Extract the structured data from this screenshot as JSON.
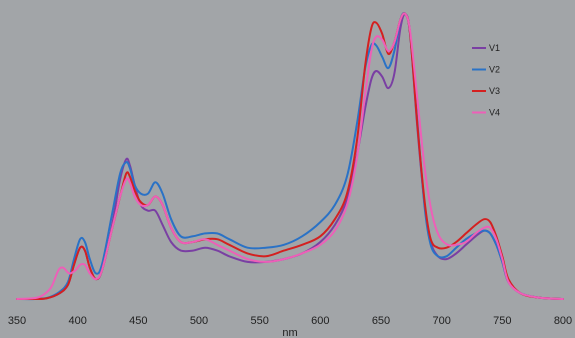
{
  "chart_data": {
    "type": "line",
    "xlabel": "nm",
    "ylabel": "",
    "title": "",
    "xlim": [
      350,
      800
    ],
    "ylim": [
      0,
      1
    ],
    "x_ticks": [
      350,
      400,
      450,
      500,
      550,
      600,
      650,
      700,
      750,
      800
    ],
    "grid": false,
    "legend_position": "top-right",
    "series": [
      {
        "name": "V1",
        "color": "#7a3fa3",
        "points": [
          [
            350,
            0.0
          ],
          [
            365,
            0.0
          ],
          [
            375,
            0.003
          ],
          [
            385,
            0.02
          ],
          [
            392,
            0.05
          ],
          [
            397,
            0.12
          ],
          [
            402,
            0.18
          ],
          [
            406,
            0.17
          ],
          [
            410,
            0.11
          ],
          [
            415,
            0.07
          ],
          [
            420,
            0.1
          ],
          [
            428,
            0.25
          ],
          [
            435,
            0.42
          ],
          [
            440,
            0.49
          ],
          [
            443,
            0.47
          ],
          [
            447,
            0.4
          ],
          [
            452,
            0.33
          ],
          [
            458,
            0.31
          ],
          [
            464,
            0.31
          ],
          [
            470,
            0.26
          ],
          [
            477,
            0.2
          ],
          [
            485,
            0.17
          ],
          [
            495,
            0.17
          ],
          [
            505,
            0.18
          ],
          [
            515,
            0.17
          ],
          [
            525,
            0.15
          ],
          [
            540,
            0.13
          ],
          [
            555,
            0.13
          ],
          [
            570,
            0.14
          ],
          [
            585,
            0.16
          ],
          [
            600,
            0.2
          ],
          [
            612,
            0.26
          ],
          [
            622,
            0.35
          ],
          [
            630,
            0.5
          ],
          [
            637,
            0.67
          ],
          [
            642,
            0.77
          ],
          [
            646,
            0.8
          ],
          [
            651,
            0.78
          ],
          [
            656,
            0.74
          ],
          [
            661,
            0.79
          ],
          [
            666,
            0.95
          ],
          [
            670,
            1.0
          ],
          [
            674,
            0.93
          ],
          [
            680,
            0.6
          ],
          [
            686,
            0.33
          ],
          [
            691,
            0.2
          ],
          [
            697,
            0.15
          ],
          [
            704,
            0.14
          ],
          [
            712,
            0.16
          ],
          [
            720,
            0.19
          ],
          [
            728,
            0.22
          ],
          [
            735,
            0.24
          ],
          [
            740,
            0.23
          ],
          [
            745,
            0.19
          ],
          [
            750,
            0.13
          ],
          [
            755,
            0.06
          ],
          [
            765,
            0.02
          ],
          [
            780,
            0.005
          ],
          [
            800,
            0.0
          ]
        ]
      },
      {
        "name": "V2",
        "color": "#2a72c6",
        "points": [
          [
            350,
            0.0
          ],
          [
            365,
            0.0
          ],
          [
            375,
            0.004
          ],
          [
            385,
            0.025
          ],
          [
            392,
            0.06
          ],
          [
            397,
            0.14
          ],
          [
            402,
            0.21
          ],
          [
            406,
            0.2
          ],
          [
            410,
            0.14
          ],
          [
            415,
            0.09
          ],
          [
            420,
            0.12
          ],
          [
            428,
            0.29
          ],
          [
            435,
            0.44
          ],
          [
            440,
            0.48
          ],
          [
            443,
            0.46
          ],
          [
            447,
            0.4
          ],
          [
            452,
            0.37
          ],
          [
            458,
            0.37
          ],
          [
            464,
            0.41
          ],
          [
            470,
            0.37
          ],
          [
            477,
            0.28
          ],
          [
            485,
            0.22
          ],
          [
            495,
            0.22
          ],
          [
            505,
            0.23
          ],
          [
            515,
            0.23
          ],
          [
            525,
            0.21
          ],
          [
            540,
            0.18
          ],
          [
            555,
            0.18
          ],
          [
            570,
            0.19
          ],
          [
            585,
            0.22
          ],
          [
            600,
            0.27
          ],
          [
            612,
            0.33
          ],
          [
            622,
            0.43
          ],
          [
            630,
            0.61
          ],
          [
            637,
            0.81
          ],
          [
            642,
            0.89
          ],
          [
            646,
            0.89
          ],
          [
            651,
            0.85
          ],
          [
            656,
            0.81
          ],
          [
            661,
            0.87
          ],
          [
            666,
            0.98
          ],
          [
            670,
            1.0
          ],
          [
            674,
            0.93
          ],
          [
            680,
            0.62
          ],
          [
            686,
            0.32
          ],
          [
            691,
            0.19
          ],
          [
            697,
            0.15
          ],
          [
            704,
            0.15
          ],
          [
            712,
            0.18
          ],
          [
            720,
            0.21
          ],
          [
            728,
            0.23
          ],
          [
            735,
            0.24
          ],
          [
            740,
            0.23
          ],
          [
            745,
            0.19
          ],
          [
            750,
            0.13
          ],
          [
            755,
            0.06
          ],
          [
            765,
            0.02
          ],
          [
            780,
            0.005
          ],
          [
            800,
            0.0
          ]
        ]
      },
      {
        "name": "V3",
        "color": "#d42020",
        "points": [
          [
            350,
            0.0
          ],
          [
            365,
            0.0
          ],
          [
            375,
            0.003
          ],
          [
            385,
            0.02
          ],
          [
            392,
            0.05
          ],
          [
            397,
            0.12
          ],
          [
            402,
            0.18
          ],
          [
            406,
            0.17
          ],
          [
            410,
            0.11
          ],
          [
            415,
            0.07
          ],
          [
            420,
            0.1
          ],
          [
            428,
            0.24
          ],
          [
            435,
            0.36
          ],
          [
            440,
            0.44
          ],
          [
            443,
            0.43
          ],
          [
            447,
            0.38
          ],
          [
            452,
            0.34
          ],
          [
            458,
            0.33
          ],
          [
            464,
            0.36
          ],
          [
            470,
            0.33
          ],
          [
            477,
            0.25
          ],
          [
            485,
            0.2
          ],
          [
            495,
            0.2
          ],
          [
            505,
            0.21
          ],
          [
            515,
            0.21
          ],
          [
            525,
            0.19
          ],
          [
            540,
            0.16
          ],
          [
            555,
            0.15
          ],
          [
            570,
            0.17
          ],
          [
            585,
            0.19
          ],
          [
            600,
            0.22
          ],
          [
            612,
            0.28
          ],
          [
            622,
            0.37
          ],
          [
            630,
            0.55
          ],
          [
            637,
            0.82
          ],
          [
            642,
            0.95
          ],
          [
            646,
            0.97
          ],
          [
            651,
            0.93
          ],
          [
            656,
            0.86
          ],
          [
            661,
            0.9
          ],
          [
            666,
            0.98
          ],
          [
            670,
            1.0
          ],
          [
            674,
            0.93
          ],
          [
            680,
            0.61
          ],
          [
            686,
            0.34
          ],
          [
            691,
            0.21
          ],
          [
            697,
            0.18
          ],
          [
            704,
            0.18
          ],
          [
            712,
            0.2
          ],
          [
            720,
            0.23
          ],
          [
            728,
            0.26
          ],
          [
            735,
            0.28
          ],
          [
            740,
            0.27
          ],
          [
            745,
            0.22
          ],
          [
            750,
            0.15
          ],
          [
            755,
            0.07
          ],
          [
            765,
            0.02
          ],
          [
            780,
            0.005
          ],
          [
            800,
            0.0
          ]
        ]
      },
      {
        "name": "V4",
        "color": "#ee5fb8",
        "points": [
          [
            350,
            0.0
          ],
          [
            362,
            0.002
          ],
          [
            370,
            0.01
          ],
          [
            378,
            0.04
          ],
          [
            384,
            0.1
          ],
          [
            388,
            0.11
          ],
          [
            393,
            0.09
          ],
          [
            398,
            0.1
          ],
          [
            402,
            0.12
          ],
          [
            406,
            0.12
          ],
          [
            410,
            0.09
          ],
          [
            415,
            0.07
          ],
          [
            420,
            0.1
          ],
          [
            428,
            0.24
          ],
          [
            435,
            0.36
          ],
          [
            440,
            0.42
          ],
          [
            443,
            0.41
          ],
          [
            447,
            0.36
          ],
          [
            452,
            0.33
          ],
          [
            458,
            0.33
          ],
          [
            464,
            0.36
          ],
          [
            470,
            0.33
          ],
          [
            477,
            0.25
          ],
          [
            485,
            0.2
          ],
          [
            495,
            0.2
          ],
          [
            505,
            0.21
          ],
          [
            515,
            0.19
          ],
          [
            525,
            0.17
          ],
          [
            540,
            0.14
          ],
          [
            555,
            0.13
          ],
          [
            570,
            0.14
          ],
          [
            585,
            0.16
          ],
          [
            600,
            0.19
          ],
          [
            612,
            0.24
          ],
          [
            622,
            0.33
          ],
          [
            630,
            0.49
          ],
          [
            637,
            0.72
          ],
          [
            642,
            0.87
          ],
          [
            646,
            0.92
          ],
          [
            651,
            0.91
          ],
          [
            656,
            0.87
          ],
          [
            661,
            0.9
          ],
          [
            666,
            0.98
          ],
          [
            670,
            1.0
          ],
          [
            674,
            0.94
          ],
          [
            680,
            0.7
          ],
          [
            686,
            0.46
          ],
          [
            692,
            0.3
          ],
          [
            698,
            0.22
          ],
          [
            705,
            0.19
          ],
          [
            712,
            0.19
          ],
          [
            720,
            0.2
          ],
          [
            728,
            0.23
          ],
          [
            735,
            0.25
          ],
          [
            740,
            0.25
          ],
          [
            745,
            0.21
          ],
          [
            750,
            0.14
          ],
          [
            755,
            0.06
          ],
          [
            765,
            0.02
          ],
          [
            780,
            0.005
          ],
          [
            800,
            0.0
          ]
        ]
      }
    ]
  }
}
